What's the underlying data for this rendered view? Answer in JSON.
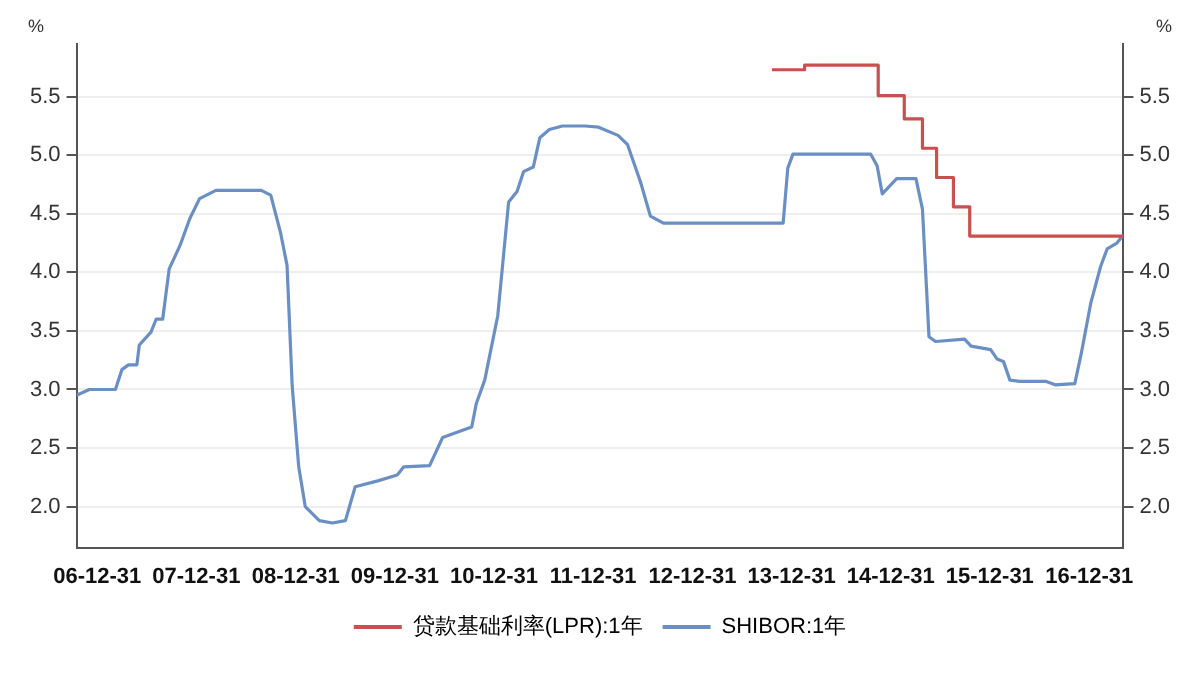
{
  "chart_data": {
    "type": "line",
    "ylabel": "%",
    "y2label": "%",
    "xlim": [
      "2006-10-16",
      "2017-05-06"
    ],
    "xticks": [
      {
        "value": "2006-12-31",
        "label": "06-12-31"
      },
      {
        "value": "2007-12-31",
        "label": "07-12-31"
      },
      {
        "value": "2008-12-31",
        "label": "08-12-31"
      },
      {
        "value": "2009-12-31",
        "label": "09-12-31"
      },
      {
        "value": "2010-12-31",
        "label": "10-12-31"
      },
      {
        "value": "2011-12-31",
        "label": "11-12-31"
      },
      {
        "value": "2012-12-31",
        "label": "12-12-31"
      },
      {
        "value": "2013-12-31",
        "label": "13-12-31"
      },
      {
        "value": "2014-12-31",
        "label": "14-12-31"
      },
      {
        "value": "2015-12-31",
        "label": "15-12-31"
      },
      {
        "value": "2016-12-31",
        "label": "16-12-31"
      }
    ],
    "ylim": [
      1.65,
      5.95
    ],
    "yticks": [
      {
        "value": 2,
        "label": "2.0"
      },
      {
        "value": 2.5,
        "label": "2.5"
      },
      {
        "value": 3,
        "label": "3.0"
      },
      {
        "value": 3.5,
        "label": "3.5"
      },
      {
        "value": 4,
        "label": "4.0"
      },
      {
        "value": 4.5,
        "label": "4.5"
      },
      {
        "value": 5,
        "label": "5.0"
      },
      {
        "value": 5.5,
        "label": "5.5"
      }
    ],
    "y2lim": [
      1.65,
      5.95
    ],
    "y2ticks": [
      {
        "value": 2,
        "label": "2.0"
      },
      {
        "value": 2.5,
        "label": "2.5"
      },
      {
        "value": 3,
        "label": "3.0"
      },
      {
        "value": 3.5,
        "label": "3.5"
      },
      {
        "value": 4,
        "label": "4.0"
      },
      {
        "value": 4.5,
        "label": "4.5"
      },
      {
        "value": 5,
        "label": "5.0"
      },
      {
        "value": 5.5,
        "label": "5.5"
      }
    ],
    "grid": "y",
    "legend": "bottom",
    "marker": "none",
    "series": [
      {
        "name": "贷款基础利率(LPR):1年",
        "type": "step",
        "color": "#c9504e",
        "x": [
          "2013-10-20",
          "2014-02-17",
          "2014-11-15",
          "2015-02-19",
          "2015-04-27",
          "2015-06-18",
          "2015-08-19",
          "2015-10-18",
          "2017-05-06"
        ],
        "values": [
          5.73,
          5.77,
          5.51,
          5.31,
          5.06,
          4.81,
          4.56,
          4.31,
          4.31
        ]
      },
      {
        "name": "SHIBOR:1年",
        "type": "line",
        "color": "#6a8fc4",
        "x": [
          "2006-10-16",
          "2006-12-02",
          "2007-03-08",
          "2007-04-01",
          "2007-04-25",
          "2007-05-26",
          "2007-06-04",
          "2007-07-17",
          "2007-08-05",
          "2007-08-29",
          "2007-09-22",
          "2007-11-01",
          "2007-12-07",
          "2008-01-12",
          "2008-03-12",
          "2008-08-26",
          "2008-09-30",
          "2008-11-05",
          "2008-11-29",
          "2008-12-18",
          "2009-01-11",
          "2009-02-04",
          "2009-03-28",
          "2009-05-15",
          "2009-07-02",
          "2009-08-07",
          "2009-10-29",
          "2010-01-09",
          "2010-02-02",
          "2010-05-08",
          "2010-06-25",
          "2010-09-04",
          "2010-10-10",
          "2010-10-27",
          "2010-11-27",
          "2011-01-14",
          "2011-02-23",
          "2011-03-26",
          "2011-04-19",
          "2011-05-25",
          "2011-06-18",
          "2011-07-23",
          "2011-09-09",
          "2011-12-02",
          "2012-01-20",
          "2012-04-01",
          "2012-05-06",
          "2012-06-23",
          "2012-07-29",
          "2012-09-15",
          "2013-11-30",
          "2013-12-17",
          "2014-01-05",
          "2014-10-18",
          "2014-11-11",
          "2014-11-30",
          "2015-01-22",
          "2015-04-03",
          "2015-04-27",
          "2015-05-21",
          "2015-06-14",
          "2015-09-29",
          "2015-10-23",
          "2016-01-03",
          "2016-01-27",
          "2016-02-19",
          "2016-03-14",
          "2016-04-19",
          "2016-07-23",
          "2016-08-28",
          "2016-11-08",
          "2016-12-02",
          "2017-01-06",
          "2017-02-11",
          "2017-03-07",
          "2017-04-12",
          "2017-05-06"
        ],
        "values": [
          2.95,
          3.0,
          3.0,
          3.17,
          3.21,
          3.21,
          3.38,
          3.49,
          3.6,
          3.6,
          4.03,
          4.23,
          4.46,
          4.63,
          4.7,
          4.7,
          4.66,
          4.34,
          4.06,
          3.03,
          2.34,
          2.0,
          1.88,
          1.86,
          1.88,
          2.17,
          2.22,
          2.27,
          2.34,
          2.35,
          2.59,
          2.65,
          2.68,
          2.88,
          3.08,
          3.63,
          4.6,
          4.69,
          4.86,
          4.9,
          5.15,
          5.22,
          5.25,
          5.25,
          5.24,
          5.17,
          5.09,
          4.77,
          4.48,
          4.42,
          4.42,
          4.89,
          5.01,
          5.01,
          4.91,
          4.67,
          4.8,
          4.8,
          4.54,
          3.45,
          3.41,
          3.43,
          3.37,
          3.34,
          3.26,
          3.24,
          3.08,
          3.07,
          3.07,
          3.04,
          3.05,
          3.31,
          3.74,
          4.05,
          4.2,
          4.25,
          4.32
        ]
      }
    ]
  }
}
